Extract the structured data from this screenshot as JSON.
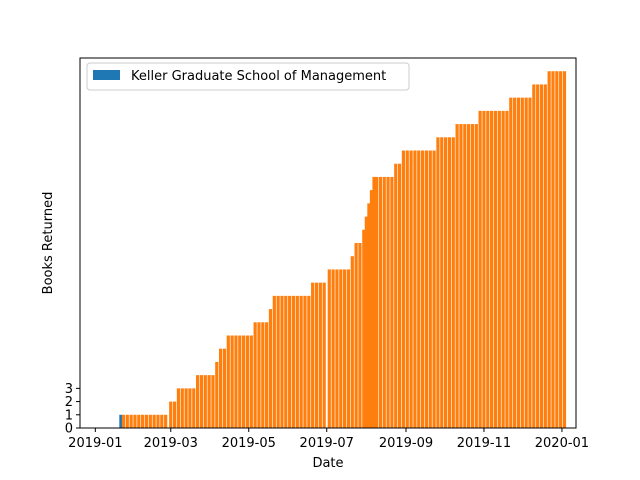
{
  "chart_data": {
    "type": "bar",
    "title": "",
    "xlabel": "Date",
    "ylabel": "Books Returned",
    "x_range": [
      "2018-12-20",
      "2020-01-12"
    ],
    "ylim": [
      0,
      28.0
    ],
    "y_ticks": [
      0,
      1,
      2,
      3
    ],
    "x_ticks": [
      "2019-01",
      "2019-03",
      "2019-05",
      "2019-07",
      "2019-09",
      "2019-11",
      "2020-01"
    ],
    "legend": {
      "placement": "top-left",
      "entries": [
        {
          "name": "Keller Graduate School of Management",
          "color": "#1f77b4"
        }
      ]
    },
    "series": [
      {
        "name": "Keller Graduate School of Management",
        "color": "#1f77b4",
        "points": [
          [
            "2019-01-21",
            1
          ]
        ]
      },
      {
        "color": "#ff7f0e",
        "points": [
          [
            "2019-01-23",
            1
          ],
          [
            "2019-01-26",
            1
          ],
          [
            "2019-01-29",
            1
          ],
          [
            "2019-02-01",
            1
          ],
          [
            "2019-02-04",
            1
          ],
          [
            "2019-02-07",
            1
          ],
          [
            "2019-02-10",
            1
          ],
          [
            "2019-02-13",
            1
          ],
          [
            "2019-02-16",
            1
          ],
          [
            "2019-02-19",
            1
          ],
          [
            "2019-02-22",
            1
          ],
          [
            "2019-02-25",
            1
          ],
          [
            "2019-03-01",
            2
          ],
          [
            "2019-03-04",
            2
          ],
          [
            "2019-03-07",
            3
          ],
          [
            "2019-03-10",
            3
          ],
          [
            "2019-03-13",
            3
          ],
          [
            "2019-03-16",
            3
          ],
          [
            "2019-03-19",
            3
          ],
          [
            "2019-03-22",
            4
          ],
          [
            "2019-03-25",
            4
          ],
          [
            "2019-03-28",
            4
          ],
          [
            "2019-03-31",
            4
          ],
          [
            "2019-04-03",
            4
          ],
          [
            "2019-04-06",
            5
          ],
          [
            "2019-04-09",
            6
          ],
          [
            "2019-04-12",
            6
          ],
          [
            "2019-04-15",
            7
          ],
          [
            "2019-04-18",
            7
          ],
          [
            "2019-04-21",
            7
          ],
          [
            "2019-04-24",
            7
          ],
          [
            "2019-04-27",
            7
          ],
          [
            "2019-04-30",
            7
          ],
          [
            "2019-05-03",
            7
          ],
          [
            "2019-05-06",
            8
          ],
          [
            "2019-05-09",
            8
          ],
          [
            "2019-05-12",
            8
          ],
          [
            "2019-05-15",
            8
          ],
          [
            "2019-05-18",
            9
          ],
          [
            "2019-05-21",
            10
          ],
          [
            "2019-05-24",
            10
          ],
          [
            "2019-05-27",
            10
          ],
          [
            "2019-05-30",
            10
          ],
          [
            "2019-06-02",
            10
          ],
          [
            "2019-06-05",
            10
          ],
          [
            "2019-06-08",
            10
          ],
          [
            "2019-06-11",
            10
          ],
          [
            "2019-06-14",
            10
          ],
          [
            "2019-06-17",
            10
          ],
          [
            "2019-06-20",
            11
          ],
          [
            "2019-06-23",
            11
          ],
          [
            "2019-06-26",
            11
          ],
          [
            "2019-06-29",
            11
          ],
          [
            "2019-07-03",
            12
          ],
          [
            "2019-07-06",
            12
          ],
          [
            "2019-07-09",
            12
          ],
          [
            "2019-07-12",
            12
          ],
          [
            "2019-07-15",
            12
          ],
          [
            "2019-07-18",
            12
          ],
          [
            "2019-07-21",
            13
          ],
          [
            "2019-07-24",
            14
          ],
          [
            "2019-07-27",
            14
          ],
          [
            "2019-07-30",
            15
          ],
          [
            "2019-08-01",
            16
          ],
          [
            "2019-08-03",
            17
          ],
          [
            "2019-08-05",
            18
          ],
          [
            "2019-08-07",
            19
          ],
          [
            "2019-08-09",
            19
          ],
          [
            "2019-08-12",
            19
          ],
          [
            "2019-08-15",
            19
          ],
          [
            "2019-08-18",
            19
          ],
          [
            "2019-08-21",
            19
          ],
          [
            "2019-08-24",
            20
          ],
          [
            "2019-08-27",
            20
          ],
          [
            "2019-08-30",
            21
          ],
          [
            "2019-09-02",
            21
          ],
          [
            "2019-09-05",
            21
          ],
          [
            "2019-09-08",
            21
          ],
          [
            "2019-09-11",
            21
          ],
          [
            "2019-09-14",
            21
          ],
          [
            "2019-09-17",
            21
          ],
          [
            "2019-09-20",
            21
          ],
          [
            "2019-09-23",
            21
          ],
          [
            "2019-09-26",
            22
          ],
          [
            "2019-09-29",
            22
          ],
          [
            "2019-10-02",
            22
          ],
          [
            "2019-10-05",
            22
          ],
          [
            "2019-10-08",
            22
          ],
          [
            "2019-10-11",
            23
          ],
          [
            "2019-10-14",
            23
          ],
          [
            "2019-10-17",
            23
          ],
          [
            "2019-10-20",
            23
          ],
          [
            "2019-10-23",
            23
          ],
          [
            "2019-10-26",
            23
          ],
          [
            "2019-10-29",
            24
          ],
          [
            "2019-11-01",
            24
          ],
          [
            "2019-11-04",
            24
          ],
          [
            "2019-11-07",
            24
          ],
          [
            "2019-11-10",
            24
          ],
          [
            "2019-11-13",
            24
          ],
          [
            "2019-11-16",
            24
          ],
          [
            "2019-11-19",
            24
          ],
          [
            "2019-11-22",
            25
          ],
          [
            "2019-11-25",
            25
          ],
          [
            "2019-11-28",
            25
          ],
          [
            "2019-12-01",
            25
          ],
          [
            "2019-12-04",
            25
          ],
          [
            "2019-12-07",
            25
          ],
          [
            "2019-12-10",
            26
          ],
          [
            "2019-12-13",
            26
          ],
          [
            "2019-12-16",
            26
          ],
          [
            "2019-12-19",
            26
          ],
          [
            "2019-12-22",
            27
          ],
          [
            "2019-12-25",
            27
          ],
          [
            "2019-12-28",
            27
          ],
          [
            "2019-12-31",
            27
          ],
          [
            "2020-01-03",
            27
          ]
        ]
      }
    ]
  }
}
